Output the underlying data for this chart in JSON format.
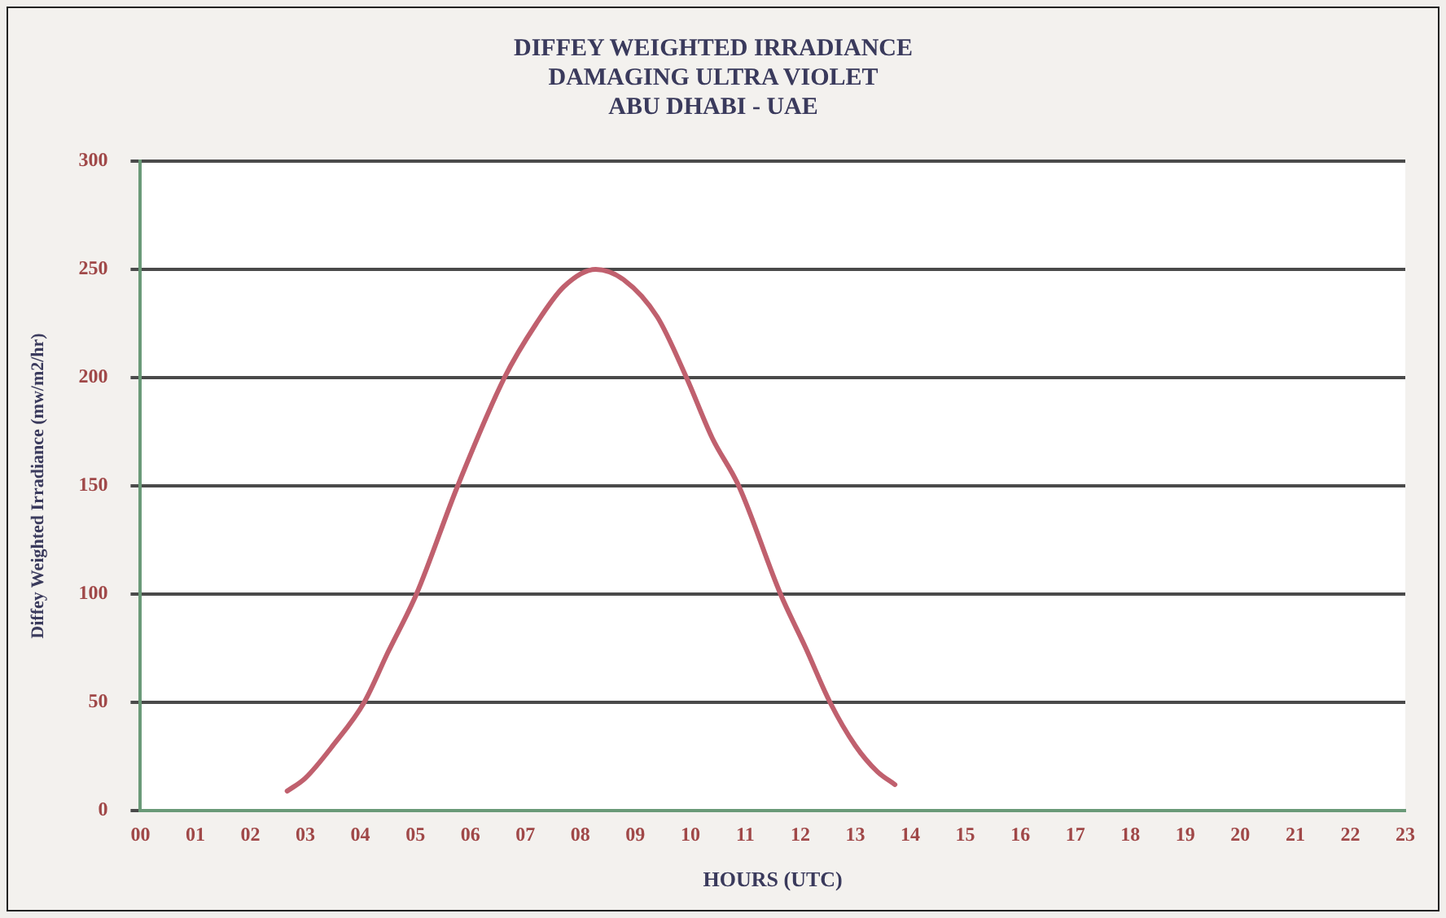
{
  "chart_data": {
    "type": "line",
    "title": "DIFFEY WEIGHTED IRRADIANCE\nDAMAGING ULTRA VIOLET\nABU DHABI - UAE",
    "xlabel": "HOURS (UTC)",
    "ylabel": "Diffey Weighted Irradiance (mw/m2/hr)",
    "series": [
      {
        "color": "#c0606e",
        "x": [
          2.67,
          3,
          3.5,
          4.07,
          4.5,
          5.02,
          5.77,
          6.62,
          7.2,
          7.7,
          8.28,
          8.8,
          9.4,
          9.93,
          10.4,
          10.88,
          11.64,
          12.1,
          12.54,
          13,
          13.4,
          13.72
        ],
        "values": [
          9,
          15,
          30,
          50,
          73,
          100,
          150,
          200,
          225,
          242,
          250,
          245,
          228,
          200,
          172,
          150,
          100,
          75,
          50,
          30,
          18,
          12
        ]
      }
    ],
    "xlim": [
      0,
      23
    ],
    "xticks": [
      {
        "value": 0,
        "label": "00"
      },
      {
        "value": 1,
        "label": "01"
      },
      {
        "value": 2,
        "label": "02"
      },
      {
        "value": 3,
        "label": "03"
      },
      {
        "value": 4,
        "label": "04"
      },
      {
        "value": 5,
        "label": "05"
      },
      {
        "value": 6,
        "label": "06"
      },
      {
        "value": 7,
        "label": "07"
      },
      {
        "value": 8,
        "label": "08"
      },
      {
        "value": 9,
        "label": "09"
      },
      10,
      11,
      12,
      13,
      14,
      15,
      16,
      17,
      18,
      19,
      20,
      21,
      22,
      23
    ],
    "ylim": [
      0,
      300
    ],
    "yticks": [
      0,
      50,
      100,
      150,
      200,
      250,
      300
    ],
    "grid": "y",
    "legend": false,
    "marker": "none",
    "line_style": "solid"
  }
}
